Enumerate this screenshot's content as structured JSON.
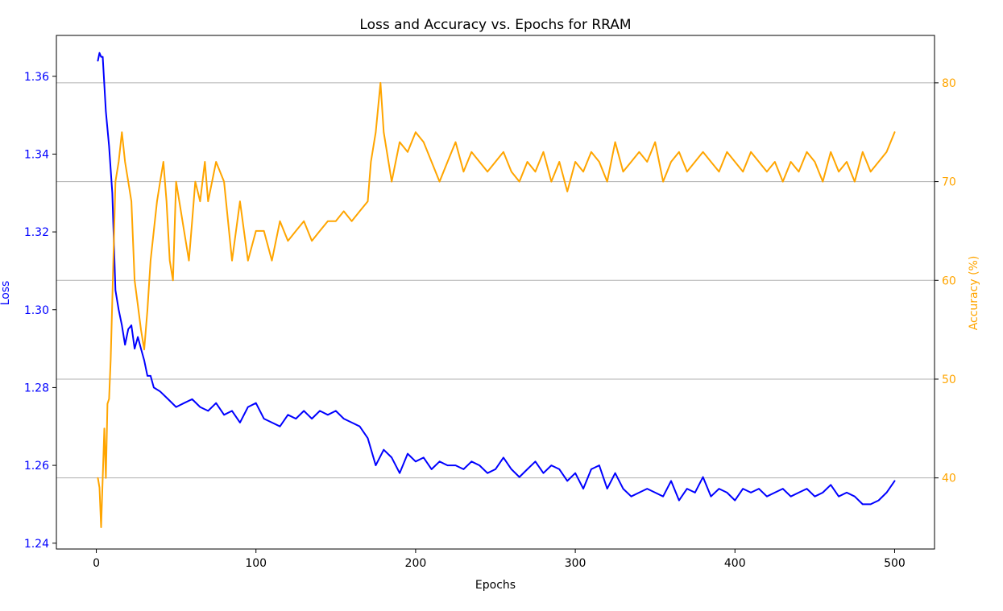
{
  "chart_data": {
    "type": "line",
    "title": "Loss and Accuracy vs. Epochs for RRAM",
    "xlabel": "Epochs",
    "ylabel_left": "Loss",
    "ylabel_right": "Accuracy (%)",
    "xlim": [
      -25,
      525
    ],
    "ylim_left": [
      1.2385,
      1.3705
    ],
    "ylim_right": [
      32.8,
      84.8
    ],
    "x_ticks": [
      0,
      100,
      200,
      300,
      400,
      500
    ],
    "y_ticks_left": [
      1.24,
      1.26,
      1.28,
      1.3,
      1.32,
      1.34,
      1.36
    ],
    "y_ticks_left_labels": [
      "1.24",
      "1.26",
      "1.28",
      "1.30",
      "1.32",
      "1.34",
      "1.36"
    ],
    "y_ticks_right": [
      40,
      50,
      60,
      70,
      80
    ],
    "grid": "horizontal on right axis",
    "colors": {
      "loss": "#0000ff",
      "accuracy": "#ffa500",
      "grid": "#b0b0b0"
    },
    "series": [
      {
        "axis": "left",
        "color": "#0000ff",
        "x": [
          1,
          2,
          3,
          4,
          6,
          8,
          10,
          12,
          14,
          16,
          18,
          20,
          22,
          24,
          26,
          28,
          30,
          32,
          34,
          36,
          40,
          45,
          50,
          55,
          60,
          65,
          70,
          75,
          80,
          85,
          90,
          95,
          100,
          105,
          110,
          115,
          120,
          125,
          130,
          135,
          140,
          145,
          150,
          155,
          160,
          165,
          170,
          175,
          180,
          185,
          190,
          195,
          200,
          205,
          210,
          215,
          220,
          225,
          230,
          235,
          240,
          245,
          250,
          255,
          260,
          265,
          270,
          275,
          280,
          285,
          290,
          295,
          300,
          305,
          310,
          315,
          320,
          325,
          330,
          335,
          340,
          345,
          350,
          355,
          360,
          365,
          370,
          375,
          380,
          385,
          390,
          395,
          400,
          405,
          410,
          415,
          420,
          425,
          430,
          435,
          440,
          445,
          450,
          455,
          460,
          465,
          470,
          475,
          480,
          485,
          490,
          495,
          500
        ],
        "values": [
          1.364,
          1.366,
          1.365,
          1.365,
          1.351,
          1.342,
          1.33,
          1.305,
          1.3,
          1.296,
          1.291,
          1.295,
          1.296,
          1.29,
          1.293,
          1.29,
          1.287,
          1.283,
          1.283,
          1.28,
          1.279,
          1.277,
          1.275,
          1.276,
          1.277,
          1.275,
          1.274,
          1.276,
          1.273,
          1.274,
          1.271,
          1.275,
          1.276,
          1.272,
          1.271,
          1.27,
          1.273,
          1.272,
          1.274,
          1.272,
          1.274,
          1.273,
          1.274,
          1.272,
          1.271,
          1.27,
          1.267,
          1.26,
          1.264,
          1.262,
          1.258,
          1.263,
          1.261,
          1.262,
          1.259,
          1.261,
          1.26,
          1.26,
          1.259,
          1.261,
          1.26,
          1.258,
          1.259,
          1.262,
          1.259,
          1.257,
          1.259,
          1.261,
          1.258,
          1.26,
          1.259,
          1.256,
          1.258,
          1.254,
          1.259,
          1.26,
          1.254,
          1.258,
          1.254,
          1.252,
          1.253,
          1.254,
          1.253,
          1.252,
          1.256,
          1.251,
          1.254,
          1.253,
          1.257,
          1.252,
          1.254,
          1.253,
          1.251,
          1.254,
          1.253,
          1.254,
          1.252,
          1.253,
          1.254,
          1.252,
          1.253,
          1.254,
          1.252,
          1.253,
          1.255,
          1.252,
          1.253,
          1.252,
          1.25,
          1.25,
          1.251,
          1.253,
          1.256
        ]
      },
      {
        "axis": "right",
        "color": "#ffa500",
        "x": [
          1,
          2,
          3,
          4,
          5,
          6,
          7,
          8,
          9,
          10,
          12,
          14,
          16,
          18,
          20,
          22,
          24,
          26,
          28,
          30,
          32,
          34,
          36,
          38,
          40,
          42,
          44,
          46,
          48,
          50,
          55,
          58,
          60,
          62,
          65,
          68,
          70,
          75,
          80,
          85,
          90,
          95,
          100,
          105,
          110,
          115,
          120,
          125,
          130,
          135,
          140,
          145,
          150,
          155,
          160,
          165,
          170,
          172,
          175,
          178,
          180,
          185,
          190,
          195,
          200,
          205,
          210,
          215,
          220,
          225,
          230,
          235,
          240,
          245,
          250,
          255,
          260,
          265,
          270,
          275,
          280,
          285,
          290,
          295,
          300,
          305,
          310,
          315,
          320,
          325,
          330,
          335,
          340,
          345,
          350,
          355,
          360,
          365,
          370,
          375,
          380,
          385,
          390,
          395,
          400,
          405,
          410,
          415,
          420,
          425,
          430,
          435,
          440,
          445,
          450,
          455,
          460,
          465,
          470,
          475,
          480,
          485,
          490,
          495,
          500
        ],
        "values": [
          40,
          39,
          35,
          40,
          45,
          40,
          47.5,
          48,
          52,
          58,
          70,
          72,
          75,
          72,
          70,
          68,
          60,
          57.5,
          55,
          53,
          57,
          62,
          65,
          68,
          70,
          72,
          68,
          62,
          60,
          70,
          65,
          62,
          66,
          70,
          68,
          72,
          68,
          72,
          70,
          62,
          68,
          62,
          65,
          65,
          62,
          66,
          64,
          65,
          66,
          64,
          65,
          66,
          66,
          67,
          66,
          67,
          68,
          72,
          75,
          80,
          75,
          70,
          74,
          73,
          75,
          74,
          72,
          70,
          72,
          74,
          71,
          73,
          72,
          71,
          72,
          73,
          71,
          70,
          72,
          71,
          73,
          70,
          72,
          69,
          72,
          71,
          73,
          72,
          70,
          74,
          71,
          72,
          73,
          72,
          74,
          70,
          72,
          73,
          71,
          72,
          73,
          72,
          71,
          73,
          72,
          71,
          73,
          72,
          71,
          72,
          70,
          72,
          71,
          73,
          72,
          70,
          73,
          71,
          72,
          70,
          73,
          71,
          72,
          73,
          75
        ]
      }
    ]
  }
}
